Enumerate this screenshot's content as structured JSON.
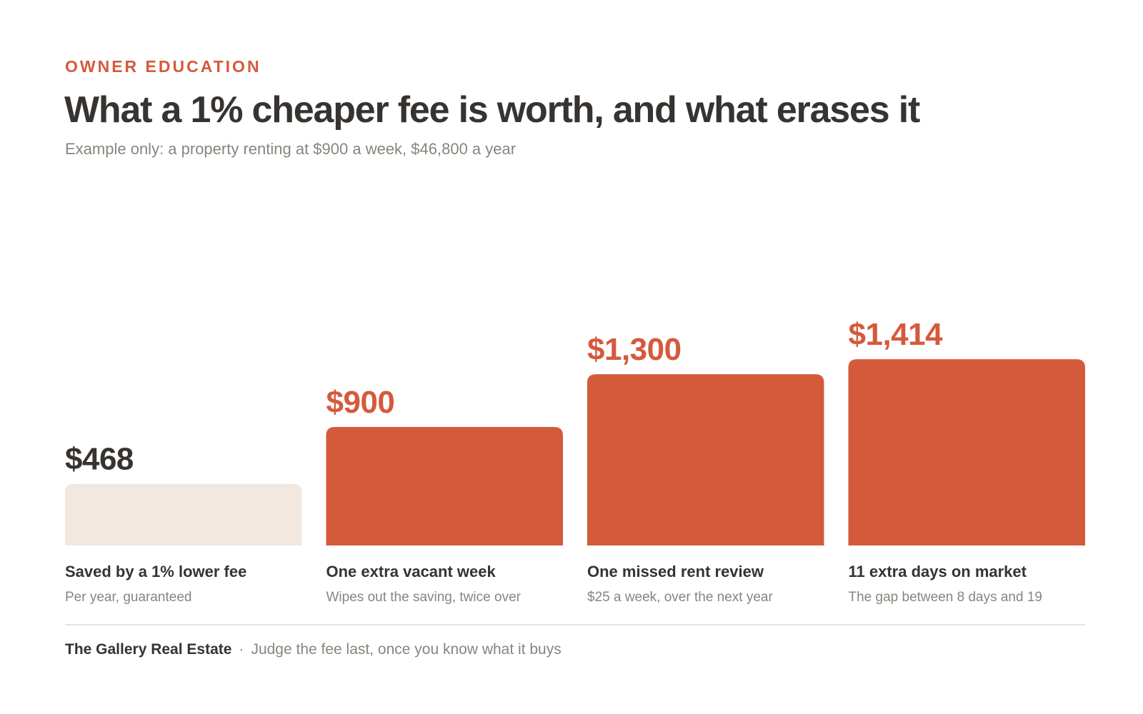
{
  "header": {
    "eyebrow": "OWNER EDUCATION",
    "title": "What a 1% cheaper fee is worth, and what erases it",
    "subtitle": "Example only: a property renting at $900 a week, $46,800 a year"
  },
  "colors": {
    "accent": "#d45a3c",
    "baseline_bar": "#f2e8df",
    "text_dark": "#363330",
    "text_muted": "#8a847e"
  },
  "chart_data": {
    "type": "bar",
    "categories": [
      "Saved by a 1% lower fee",
      "One extra vacant week",
      "One missed rent review",
      "11 extra days on market"
    ],
    "values": [
      468,
      900,
      1300,
      1414
    ],
    "value_labels": [
      "$468",
      "$900",
      "$1,300",
      "$1,414"
    ],
    "sublabels": [
      "Per year, guaranteed",
      "Wipes out the saving, twice over",
      "$25 a week, over the next year",
      "The gap between 8 days and 19"
    ],
    "bar_colors": [
      "#f2e8df",
      "#d45a3c",
      "#d45a3c",
      "#d45a3c"
    ],
    "value_label_colors": [
      "#363330",
      "#d45a3c",
      "#d45a3c",
      "#d45a3c"
    ],
    "ylim": [
      0,
      1500
    ],
    "grid": false,
    "legend": "none"
  },
  "footer": {
    "brand": "The Gallery Real Estate",
    "separator": "·",
    "tagline": "Judge the fee last, once you know what it buys"
  }
}
